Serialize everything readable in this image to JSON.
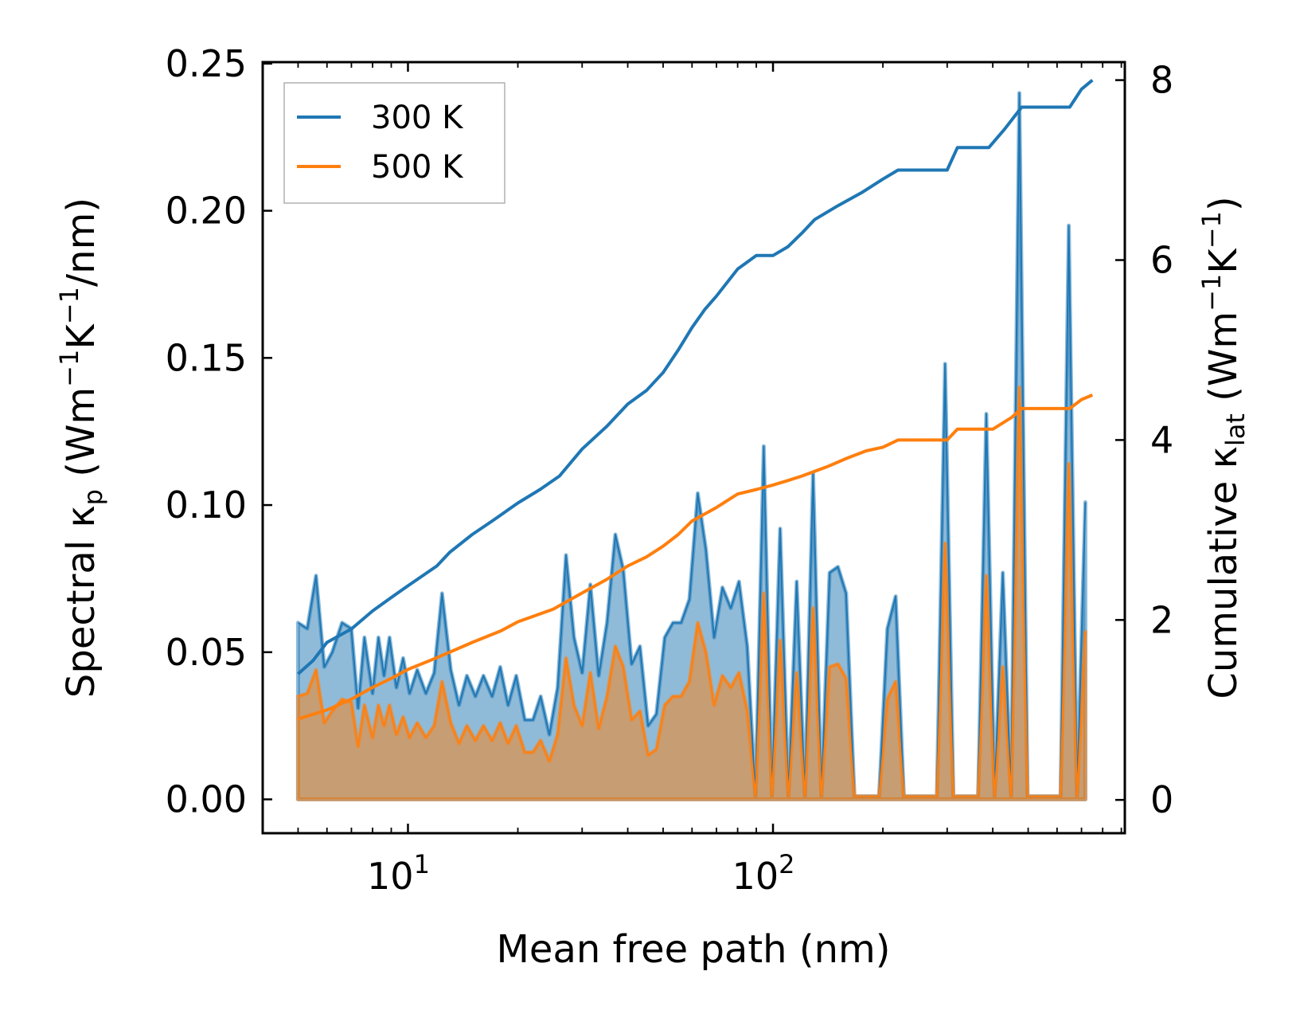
{
  "chart_data": {
    "type": "line+area (dual y-axis, log x)",
    "xlabel": "Mean free path (nm)",
    "ylabel_left": {
      "prefix": "Spectral κ",
      "sub": "p",
      "unit_open": " (Wm",
      "sup1": "−1",
      "mid": "K",
      "sup2": "−1",
      "unit_close": "/nm)"
    },
    "ylabel_right": {
      "prefix": "Cumulative κ",
      "sub": "lat",
      "unit_open": " (Wm",
      "sup1": "−1",
      "mid": "K",
      "sup2": "−1",
      "unit_close": ")"
    },
    "x_scale": "log",
    "xlim": [
      4.0,
      920
    ],
    "ylim_left": [
      -0.0115,
      0.2505
    ],
    "ylim_right": [
      -0.37,
      8.2
    ],
    "x_ticks": [
      {
        "base": "10",
        "exp": "1",
        "value": 10
      },
      {
        "base": "10",
        "exp": "2",
        "value": 100
      }
    ],
    "y_ticks_left": [
      {
        "label": "0.00",
        "value": 0.0
      },
      {
        "label": "0.05",
        "value": 0.05
      },
      {
        "label": "0.10",
        "value": 0.1
      },
      {
        "label": "0.15",
        "value": 0.15
      },
      {
        "label": "0.20",
        "value": 0.2
      },
      {
        "label": "0.25",
        "value": 0.25
      }
    ],
    "y_ticks_right": [
      {
        "label": "0",
        "value": 0
      },
      {
        "label": "2",
        "value": 2
      },
      {
        "label": "4",
        "value": 4
      },
      {
        "label": "6",
        "value": 6
      },
      {
        "label": "8",
        "value": 8
      }
    ],
    "legend": {
      "position": "top-left",
      "entries": [
        {
          "label": "300 K",
          "color": "#1f77b4"
        },
        {
          "label": "500 K",
          "color": "#ff7f0e"
        }
      ]
    },
    "series": [
      {
        "name": "300 K",
        "color": "#1f77b4",
        "spectral": [
          [
            5.0,
            0.06
          ],
          [
            5.3,
            0.058
          ],
          [
            5.6,
            0.076
          ],
          [
            5.9,
            0.045
          ],
          [
            6.2,
            0.05
          ],
          [
            6.6,
            0.06
          ],
          [
            7.0,
            0.058
          ],
          [
            7.3,
            0.031
          ],
          [
            7.6,
            0.055
          ],
          [
            8.0,
            0.036
          ],
          [
            8.3,
            0.055
          ],
          [
            8.6,
            0.042
          ],
          [
            8.9,
            0.055
          ],
          [
            9.3,
            0.038
          ],
          [
            9.7,
            0.048
          ],
          [
            10.1,
            0.036
          ],
          [
            10.6,
            0.044
          ],
          [
            11.2,
            0.036
          ],
          [
            11.8,
            0.043
          ],
          [
            12.4,
            0.07
          ],
          [
            13.1,
            0.044
          ],
          [
            13.8,
            0.032
          ],
          [
            14.5,
            0.042
          ],
          [
            15.3,
            0.035
          ],
          [
            16.1,
            0.042
          ],
          [
            17.0,
            0.035
          ],
          [
            17.9,
            0.045
          ],
          [
            18.8,
            0.032
          ],
          [
            19.8,
            0.042
          ],
          [
            20.9,
            0.027
          ],
          [
            22.0,
            0.027
          ],
          [
            23.1,
            0.035
          ],
          [
            24.4,
            0.022
          ],
          [
            25.7,
            0.038
          ],
          [
            27.1,
            0.083
          ],
          [
            28.5,
            0.055
          ],
          [
            30.0,
            0.043
          ],
          [
            31.6,
            0.073
          ],
          [
            33.3,
            0.042
          ],
          [
            35.1,
            0.06
          ],
          [
            37.0,
            0.09
          ],
          [
            38.9,
            0.078
          ],
          [
            41.0,
            0.046
          ],
          [
            43.2,
            0.052
          ],
          [
            45.5,
            0.025
          ],
          [
            47.9,
            0.029
          ],
          [
            50.5,
            0.055
          ],
          [
            53.2,
            0.06
          ],
          [
            56.0,
            0.06
          ],
          [
            59.0,
            0.068
          ],
          [
            62.2,
            0.104
          ],
          [
            65.5,
            0.085
          ],
          [
            69.0,
            0.055
          ],
          [
            72.7,
            0.072
          ],
          [
            76.6,
            0.065
          ],
          [
            80.7,
            0.074
          ],
          [
            85.0,
            0.052
          ],
          [
            89.5,
            0.001
          ],
          [
            94.3,
            0.12
          ],
          [
            99.3,
            0.001
          ],
          [
            104.6,
            0.092
          ],
          [
            110.2,
            0.001
          ],
          [
            116.1,
            0.074
          ],
          [
            122.3,
            0.001
          ],
          [
            128.8,
            0.111
          ],
          [
            135.7,
            0.001
          ],
          [
            142.9,
            0.077
          ],
          [
            150.6,
            0.079
          ],
          [
            158.6,
            0.07
          ],
          [
            167.1,
            0.001
          ],
          [
            176.0,
            0.001
          ],
          [
            185.4,
            0.001
          ],
          [
            195.3,
            0.001
          ],
          [
            205.7,
            0.058
          ],
          [
            216.7,
            0.069
          ],
          [
            228.3,
            0.001
          ],
          [
            240.5,
            0.001
          ],
          [
            253.3,
            0.001
          ],
          [
            266.8,
            0.001
          ],
          [
            281.1,
            0.001
          ],
          [
            296.1,
            0.148
          ],
          [
            311.9,
            0.001
          ],
          [
            328.5,
            0.001
          ],
          [
            346.1,
            0.001
          ],
          [
            364.6,
            0.001
          ],
          [
            384.0,
            0.131
          ],
          [
            404.5,
            0.001
          ],
          [
            426.1,
            0.077
          ],
          [
            448.9,
            0.001
          ],
          [
            472.9,
            0.24
          ],
          [
            498.1,
            0.001
          ],
          [
            524.8,
            0.001
          ],
          [
            552.8,
            0.001
          ],
          [
            582.3,
            0.001
          ],
          [
            613.4,
            0.001
          ],
          [
            646.2,
            0.195
          ],
          [
            680.7,
            0.001
          ],
          [
            717.1,
            0.101
          ]
        ],
        "cumulative": [
          [
            5.0,
            1.4
          ],
          [
            5.5,
            1.55
          ],
          [
            6.0,
            1.75
          ],
          [
            7.0,
            1.9
          ],
          [
            8.0,
            2.1
          ],
          [
            9.0,
            2.25
          ],
          [
            10.0,
            2.38
          ],
          [
            12.0,
            2.6
          ],
          [
            13.0,
            2.75
          ],
          [
            15.0,
            2.95
          ],
          [
            17.0,
            3.1
          ],
          [
            20.0,
            3.3
          ],
          [
            23.0,
            3.45
          ],
          [
            26.0,
            3.6
          ],
          [
            30.0,
            3.9
          ],
          [
            35.0,
            4.15
          ],
          [
            40.0,
            4.4
          ],
          [
            45.0,
            4.55
          ],
          [
            50.0,
            4.75
          ],
          [
            55.0,
            5.0
          ],
          [
            60.0,
            5.25
          ],
          [
            65.0,
            5.45
          ],
          [
            70.0,
            5.6
          ],
          [
            80.0,
            5.9
          ],
          [
            90.0,
            6.05
          ],
          [
            100.0,
            6.05
          ],
          [
            110.0,
            6.15
          ],
          [
            120.0,
            6.3
          ],
          [
            130.0,
            6.45
          ],
          [
            150.0,
            6.6
          ],
          [
            175.0,
            6.75
          ],
          [
            200.0,
            6.9
          ],
          [
            220.0,
            7.0
          ],
          [
            300.0,
            7.0
          ],
          [
            320.0,
            7.25
          ],
          [
            390.0,
            7.25
          ],
          [
            430.0,
            7.45
          ],
          [
            480.0,
            7.7
          ],
          [
            650.0,
            7.7
          ],
          [
            700.0,
            7.9
          ],
          [
            750.0,
            8.0
          ]
        ]
      },
      {
        "name": "500 K",
        "color": "#ff7f0e",
        "spectral": [
          [
            5.0,
            0.035
          ],
          [
            5.3,
            0.036
          ],
          [
            5.6,
            0.044
          ],
          [
            5.9,
            0.026
          ],
          [
            6.2,
            0.03
          ],
          [
            6.6,
            0.034
          ],
          [
            7.0,
            0.033
          ],
          [
            7.3,
            0.018
          ],
          [
            7.6,
            0.032
          ],
          [
            8.0,
            0.021
          ],
          [
            8.3,
            0.032
          ],
          [
            8.6,
            0.025
          ],
          [
            8.9,
            0.032
          ],
          [
            9.3,
            0.022
          ],
          [
            9.7,
            0.028
          ],
          [
            10.1,
            0.021
          ],
          [
            10.6,
            0.026
          ],
          [
            11.2,
            0.021
          ],
          [
            11.8,
            0.025
          ],
          [
            12.4,
            0.04
          ],
          [
            13.1,
            0.026
          ],
          [
            13.8,
            0.019
          ],
          [
            14.5,
            0.025
          ],
          [
            15.3,
            0.02
          ],
          [
            16.1,
            0.025
          ],
          [
            17.0,
            0.02
          ],
          [
            17.9,
            0.026
          ],
          [
            18.8,
            0.019
          ],
          [
            19.8,
            0.025
          ],
          [
            20.9,
            0.016
          ],
          [
            22.0,
            0.016
          ],
          [
            23.1,
            0.02
          ],
          [
            24.4,
            0.013
          ],
          [
            25.7,
            0.022
          ],
          [
            27.1,
            0.048
          ],
          [
            28.5,
            0.032
          ],
          [
            30.0,
            0.025
          ],
          [
            31.6,
            0.043
          ],
          [
            33.3,
            0.024
          ],
          [
            35.1,
            0.035
          ],
          [
            37.0,
            0.052
          ],
          [
            38.9,
            0.045
          ],
          [
            41.0,
            0.027
          ],
          [
            43.2,
            0.03
          ],
          [
            45.5,
            0.015
          ],
          [
            47.9,
            0.017
          ],
          [
            50.5,
            0.032
          ],
          [
            53.2,
            0.035
          ],
          [
            56.0,
            0.035
          ],
          [
            59.0,
            0.04
          ],
          [
            62.2,
            0.06
          ],
          [
            65.5,
            0.05
          ],
          [
            69.0,
            0.032
          ],
          [
            72.7,
            0.042
          ],
          [
            76.6,
            0.038
          ],
          [
            80.7,
            0.043
          ],
          [
            85.0,
            0.03
          ],
          [
            89.5,
            0.001
          ],
          [
            94.3,
            0.07
          ],
          [
            99.3,
            0.001
          ],
          [
            104.6,
            0.054
          ],
          [
            110.2,
            0.001
          ],
          [
            116.1,
            0.043
          ],
          [
            122.3,
            0.001
          ],
          [
            128.8,
            0.065
          ],
          [
            135.7,
            0.001
          ],
          [
            142.9,
            0.045
          ],
          [
            150.6,
            0.046
          ],
          [
            158.6,
            0.041
          ],
          [
            167.1,
            0.001
          ],
          [
            176.0,
            0.001
          ],
          [
            185.4,
            0.001
          ],
          [
            195.3,
            0.001
          ],
          [
            205.7,
            0.034
          ],
          [
            216.7,
            0.04
          ],
          [
            228.3,
            0.001
          ],
          [
            240.5,
            0.001
          ],
          [
            253.3,
            0.001
          ],
          [
            266.8,
            0.001
          ],
          [
            281.1,
            0.001
          ],
          [
            296.1,
            0.087
          ],
          [
            311.9,
            0.001
          ],
          [
            328.5,
            0.001
          ],
          [
            346.1,
            0.001
          ],
          [
            364.6,
            0.001
          ],
          [
            384.0,
            0.076
          ],
          [
            404.5,
            0.001
          ],
          [
            426.1,
            0.045
          ],
          [
            448.9,
            0.001
          ],
          [
            472.9,
            0.14
          ],
          [
            498.1,
            0.001
          ],
          [
            524.8,
            0.001
          ],
          [
            552.8,
            0.001
          ],
          [
            582.3,
            0.001
          ],
          [
            613.4,
            0.001
          ],
          [
            646.2,
            0.114
          ],
          [
            680.7,
            0.001
          ],
          [
            717.1,
            0.057
          ]
        ],
        "cumulative": [
          [
            5.0,
            0.9
          ],
          [
            6.0,
            1.0
          ],
          [
            7.0,
            1.12
          ],
          [
            8.0,
            1.25
          ],
          [
            9.0,
            1.35
          ],
          [
            10.0,
            1.45
          ],
          [
            12.0,
            1.58
          ],
          [
            15.0,
            1.75
          ],
          [
            18.0,
            1.88
          ],
          [
            20.0,
            1.98
          ],
          [
            25.0,
            2.12
          ],
          [
            30.0,
            2.3
          ],
          [
            35.0,
            2.45
          ],
          [
            40.0,
            2.6
          ],
          [
            45.0,
            2.7
          ],
          [
            50.0,
            2.82
          ],
          [
            55.0,
            2.95
          ],
          [
            60.0,
            3.1
          ],
          [
            70.0,
            3.25
          ],
          [
            80.0,
            3.4
          ],
          [
            90.0,
            3.45
          ],
          [
            100.0,
            3.5
          ],
          [
            110.0,
            3.55
          ],
          [
            120.0,
            3.6
          ],
          [
            140.0,
            3.7
          ],
          [
            160.0,
            3.8
          ],
          [
            180.0,
            3.88
          ],
          [
            200.0,
            3.92
          ],
          [
            220.0,
            4.0
          ],
          [
            300.0,
            4.0
          ],
          [
            320.0,
            4.12
          ],
          [
            400.0,
            4.12
          ],
          [
            450.0,
            4.25
          ],
          [
            480.0,
            4.35
          ],
          [
            650.0,
            4.35
          ],
          [
            700.0,
            4.45
          ],
          [
            750.0,
            4.5
          ]
        ]
      }
    ]
  }
}
